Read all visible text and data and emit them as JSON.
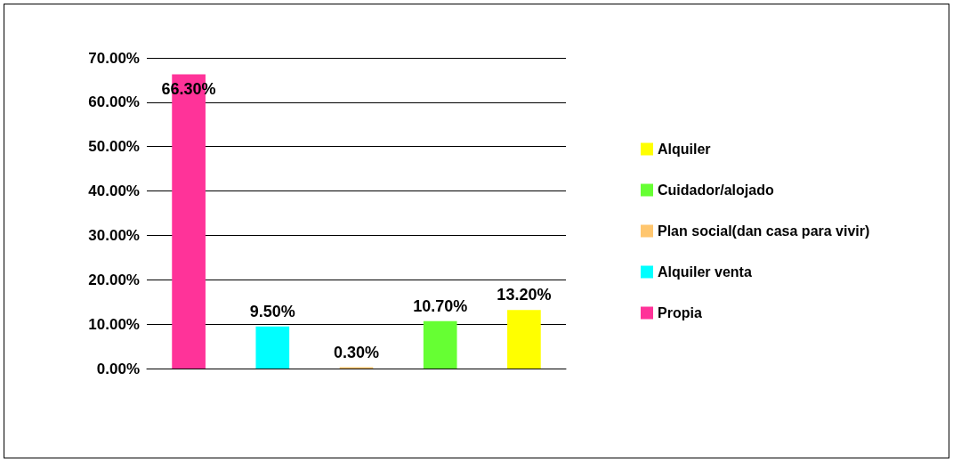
{
  "chart_data": {
    "type": "bar",
    "categories": [
      null,
      null,
      null,
      null,
      null
    ],
    "series": [
      {
        "name": "Propia",
        "color": "#ff3399",
        "values": [
          66.3,
          null,
          null,
          null,
          null
        ],
        "value_labels": [
          "66.30%",
          null,
          null,
          null,
          null
        ]
      },
      {
        "name": "Alquiler venta",
        "color": "#00ffff",
        "values": [
          null,
          9.5,
          null,
          null,
          null
        ],
        "value_labels": [
          null,
          "9.50%",
          null,
          null,
          null
        ]
      },
      {
        "name": "Plan social(dan casa para vivir)",
        "color": "#ffc66e",
        "values": [
          null,
          null,
          0.3,
          null,
          null
        ],
        "value_labels": [
          null,
          null,
          "0.30%",
          null,
          null
        ]
      },
      {
        "name": "Cuidador/alojado",
        "color": "#66ff33",
        "values": [
          null,
          null,
          null,
          10.7,
          null
        ],
        "value_labels": [
          null,
          null,
          null,
          "10.70%",
          null
        ]
      },
      {
        "name": "Alquiler",
        "color": "#ffff00",
        "values": [
          null,
          null,
          null,
          null,
          13.2
        ],
        "value_labels": [
          null,
          null,
          null,
          null,
          "13.20%"
        ]
      }
    ],
    "ylim": [
      0,
      70
    ],
    "yticks": [
      {
        "value": 0,
        "label": "0.00%"
      },
      {
        "value": 10,
        "label": "10.00%"
      },
      {
        "value": 20,
        "label": "20.00%"
      },
      {
        "value": 30,
        "label": "30.00%"
      },
      {
        "value": 40,
        "label": "40.00%"
      },
      {
        "value": 50,
        "label": "50.00%"
      },
      {
        "value": 60,
        "label": "60.00%"
      },
      {
        "value": 70,
        "label": "70.00%"
      }
    ],
    "grid": "y",
    "legend": "right"
  }
}
